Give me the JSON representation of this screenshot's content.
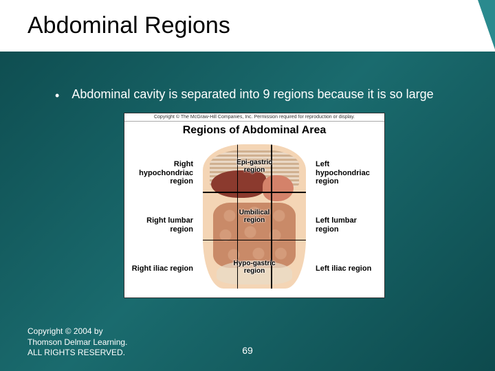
{
  "slide": {
    "title": "Abdominal Regions",
    "bullet": "Abdominal cavity is separated into 9 regions because it is so large",
    "page_number": "69",
    "footer_copyright": "Copyright © 2004 by Thomson Delmar Learning. ALL RIGHTS RESERVED."
  },
  "figure": {
    "copyright_line": "Copyright © The McGraw-Hill Companies, Inc. Permission required for reproduction or display.",
    "title": "Regions of Abdominal Area",
    "left_labels": [
      "Right hypochondriac region",
      "Right lumbar region",
      "Right iliac region"
    ],
    "center_labels": [
      "Epi-gastric region",
      "Umbilical region",
      "Hypo-gastric region"
    ],
    "right_labels": [
      "Left hypochondriac region",
      "Left lumbar region",
      "Left iliac region"
    ],
    "colors": {
      "skin": "#f4d5b5",
      "liver": "#8b3a2e",
      "stomach": "#d4826a",
      "intestine": "#d49b7a",
      "bone": "#e8dcc8",
      "grid": "#000000"
    }
  },
  "theme": {
    "background_gradient": [
      "#0d4a4d",
      "#1a6b6e",
      "#0d4a4d"
    ],
    "title_bg": "#ffffff",
    "title_color": "#000000",
    "accent": "#2a8a8e",
    "text_color": "#ffffff",
    "title_fontsize": 34,
    "body_fontsize": 18
  }
}
